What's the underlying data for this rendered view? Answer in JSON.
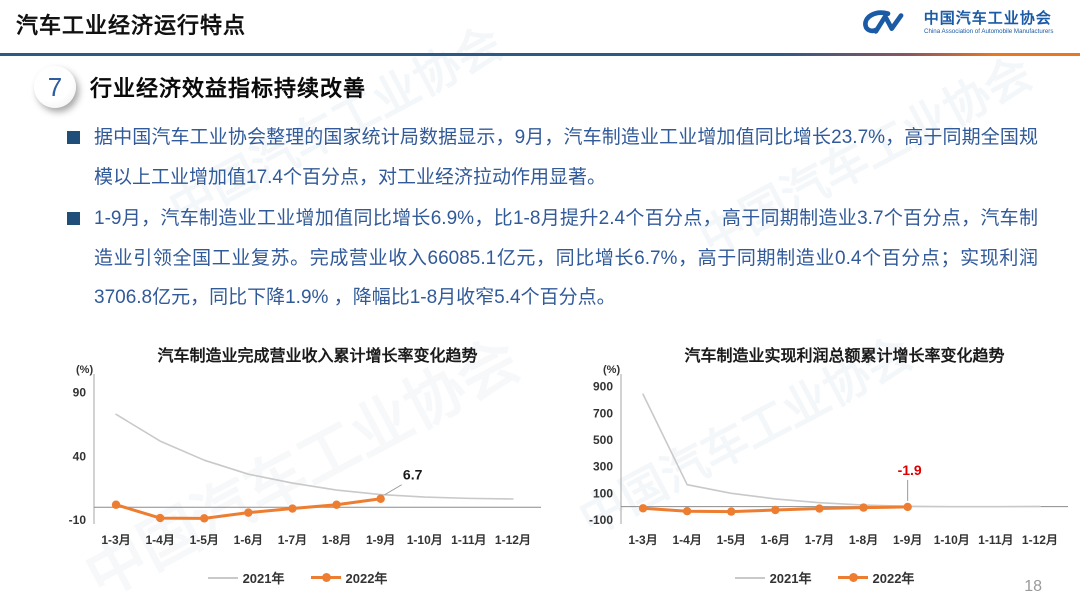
{
  "header": {
    "title": "汽车工业经济运行特点",
    "logo": {
      "org_cn": "中国汽车工业协会",
      "org_en": "China Association of Automobile Manufacturers"
    }
  },
  "section": {
    "number": "7",
    "heading": "行业经济效益指标持续改善"
  },
  "bullets": [
    {
      "text": "据中国汽车工业协会整理的国家统计局数据显示，9月，汽车制造业工业增加值同比增长23.7%，高于同期全国规模以上工业增加值17.4个百分点，对工业经济拉动作用显著。"
    },
    {
      "text": "1-9月，汽车制造业工业增加值同比增长6.9%，比1-8月提升2.4个百分点，高于同期制造业3.7个百分点，汽车制造业引领全国工业复苏。完成营业收入66085.1亿元，同比增长6.7%，高于同期制造业0.4个百分点；实现利润3706.8亿元，同比下降1.9% ，降幅比1-8月收窄5.4个百分点。"
    }
  ],
  "page_number": "18",
  "colors": {
    "accent_navy": "#1f4e79",
    "body_text_blue": "#315a99",
    "series_2021_gray": "#c9c9c9",
    "series_2022_orange": "#ed7d31",
    "negative_label_red": "#e00000",
    "divider_orange": "#e87722",
    "logo_blue": "#1b5aa5"
  },
  "watermark_text": "中国汽车工业协会",
  "chart_data": [
    {
      "type": "line",
      "title": "汽车制造业完成营业收入累计增长率变化趋势",
      "unit_label": "(%)",
      "categories": [
        "1-3月",
        "1-4月",
        "1-5月",
        "1-6月",
        "1-7月",
        "1-8月",
        "1-9月",
        "1-10月",
        "1-11月",
        "1-12月"
      ],
      "yticks": [
        90,
        40,
        -10
      ],
      "ylim": [
        -10,
        100
      ],
      "grid": false,
      "legend_position": "bottom",
      "series": [
        {
          "name": "2021年",
          "color": "#c9c9c9",
          "marker": false,
          "values": [
            73,
            52,
            37,
            26,
            19,
            13.5,
            10,
            8,
            7,
            6.5
          ]
        },
        {
          "name": "2022年",
          "color": "#ed7d31",
          "marker": true,
          "values": [
            2,
            -8.5,
            -8.7,
            -4.2,
            -1,
            2,
            6.7
          ]
        }
      ],
      "annotation": {
        "text": "6.7",
        "color": "#1a1a1a",
        "series": 1,
        "index": 6,
        "leader": "diagonal"
      }
    },
    {
      "type": "line",
      "title": "汽车制造业实现利润总额累计增长率变化趋势",
      "unit_label": "(%)",
      "categories": [
        "1-3月",
        "1-4月",
        "1-5月",
        "1-6月",
        "1-7月",
        "1-8月",
        "1-9月",
        "1-10月",
        "1-11月",
        "1-12月"
      ],
      "yticks": [
        900,
        700,
        500,
        300,
        100,
        -100
      ],
      "ylim": [
        -100,
        950
      ],
      "grid": false,
      "legend_position": "bottom",
      "series": [
        {
          "name": "2021年",
          "color": "#c9c9c9",
          "marker": false,
          "values": [
            843,
            165,
            100,
            58,
            30,
            12,
            3,
            0,
            0,
            2
          ]
        },
        {
          "name": "2022年",
          "color": "#ed7d31",
          "marker": true,
          "values": [
            -12,
            -34,
            -37,
            -25,
            -14,
            -7,
            -1.9
          ]
        }
      ],
      "annotation": {
        "text": "-1.9",
        "color": "#e00000",
        "series": 1,
        "index": 6,
        "leader": "vertical"
      }
    }
  ]
}
